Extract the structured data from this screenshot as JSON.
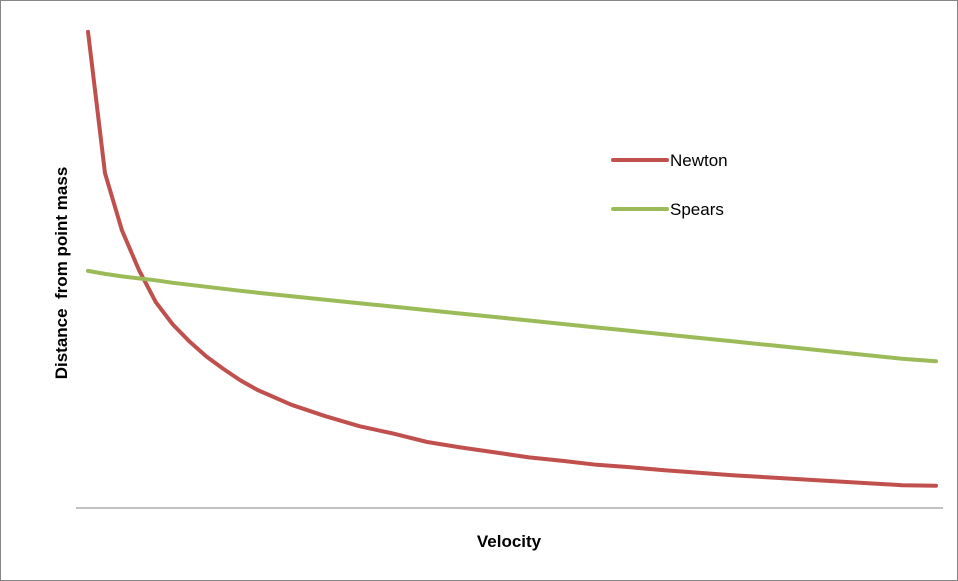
{
  "chart_data": {
    "type": "line",
    "title": "",
    "xlabel": "Velocity",
    "ylabel": "Distance  from point mass",
    "ylim": [
      0,
      10
    ],
    "xlim": [
      0,
      1
    ],
    "grid": false,
    "x_ticks_shown": false,
    "y_ticks_shown": false,
    "legend_position": "top-right",
    "x": [
      0.0,
      0.02,
      0.04,
      0.06,
      0.08,
      0.1,
      0.12,
      0.14,
      0.16,
      0.18,
      0.2,
      0.24,
      0.28,
      0.32,
      0.36,
      0.4,
      0.44,
      0.48,
      0.52,
      0.56,
      0.6,
      0.64,
      0.68,
      0.72,
      0.76,
      0.8,
      0.84,
      0.88,
      0.92,
      0.96,
      1.0
    ],
    "series": [
      {
        "name": "Newton",
        "color": "#c0504d",
        "values": [
          9.6,
          6.75,
          5.6,
          4.8,
          4.15,
          3.7,
          3.35,
          3.05,
          2.8,
          2.57,
          2.38,
          2.08,
          1.85,
          1.65,
          1.5,
          1.33,
          1.22,
          1.12,
          1.02,
          0.95,
          0.87,
          0.82,
          0.76,
          0.71,
          0.66,
          0.62,
          0.58,
          0.54,
          0.5,
          0.46,
          0.45
        ]
      },
      {
        "name": "Spears",
        "color": "#9bbb59",
        "values": [
          4.78,
          4.72,
          4.67,
          4.63,
          4.59,
          4.54,
          4.5,
          4.46,
          4.42,
          4.38,
          4.34,
          4.27,
          4.2,
          4.13,
          4.06,
          3.99,
          3.92,
          3.85,
          3.78,
          3.71,
          3.64,
          3.57,
          3.5,
          3.43,
          3.36,
          3.29,
          3.22,
          3.15,
          3.08,
          3.01,
          2.96
        ]
      }
    ]
  }
}
